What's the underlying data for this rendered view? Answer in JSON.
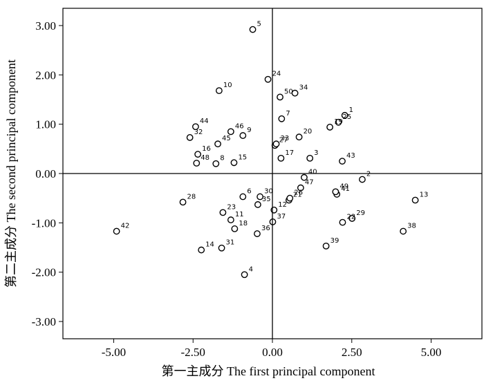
{
  "chart_data": {
    "type": "scatter",
    "title": "",
    "xlabel": "第一主成分 The first principal component",
    "ylabel": "第二主成分 The second principal component",
    "xlim": [
      -6.6,
      6.6
    ],
    "ylim": [
      -3.35,
      3.35
    ],
    "x_ticks": [
      -5,
      -2.5,
      0,
      2.5,
      5
    ],
    "x_tick_labels": [
      "-5.00",
      "-2.50",
      "0.00",
      "2.50",
      "5.00"
    ],
    "y_ticks": [
      3,
      2,
      1,
      0,
      -1,
      -2,
      -3
    ],
    "y_tick_labels": [
      "3.00",
      "2.00",
      "1.00",
      "0.00",
      "-1.00",
      "-2.00",
      "-3.00"
    ],
    "reference_lines": {
      "x": 0,
      "y": 0
    },
    "grid": false,
    "points": [
      {
        "label": "1",
        "x": 2.28,
        "y": 1.18
      },
      {
        "label": "2",
        "x": 2.83,
        "y": -0.12
      },
      {
        "label": "3",
        "x": 1.18,
        "y": 0.31
      },
      {
        "label": "4",
        "x": -0.88,
        "y": -2.05
      },
      {
        "label": "5",
        "x": -0.62,
        "y": 2.92
      },
      {
        "label": "6",
        "x": -0.93,
        "y": -0.47
      },
      {
        "label": "7",
        "x": 0.29,
        "y": 1.11
      },
      {
        "label": "8",
        "x": -1.78,
        "y": 0.2
      },
      {
        "label": "9",
        "x": -0.93,
        "y": 0.77
      },
      {
        "label": "10",
        "x": -1.68,
        "y": 1.68
      },
      {
        "label": "11",
        "x": -1.31,
        "y": -0.94
      },
      {
        "label": "12",
        "x": 0.05,
        "y": -0.74
      },
      {
        "label": "13",
        "x": 4.5,
        "y": -0.54
      },
      {
        "label": "14",
        "x": -2.24,
        "y": -1.55
      },
      {
        "label": "15",
        "x": -1.21,
        "y": 0.22
      },
      {
        "label": "16",
        "x": -2.35,
        "y": 0.39
      },
      {
        "label": "17",
        "x": 0.27,
        "y": 0.31
      },
      {
        "label": "18",
        "x": -1.19,
        "y": -1.12
      },
      {
        "label": "19",
        "x": 1.81,
        "y": 0.94
      },
      {
        "label": "20",
        "x": 0.84,
        "y": 0.74
      },
      {
        "label": "21",
        "x": 0.52,
        "y": -0.54
      },
      {
        "label": "22",
        "x": 2.21,
        "y": -0.99
      },
      {
        "label": "23",
        "x": -1.56,
        "y": -0.79
      },
      {
        "label": "24",
        "x": -0.14,
        "y": 1.91
      },
      {
        "label": "25",
        "x": 2.08,
        "y": 1.04
      },
      {
        "label": "26",
        "x": 0.55,
        "y": -0.5
      },
      {
        "label": "27",
        "x": 0.08,
        "y": 0.57
      },
      {
        "label": "28",
        "x": -2.82,
        "y": -0.58
      },
      {
        "label": "29",
        "x": 2.51,
        "y": -0.91
      },
      {
        "label": "30",
        "x": -0.39,
        "y": -0.47
      },
      {
        "label": "31",
        "x": -1.6,
        "y": -1.51
      },
      {
        "label": "32",
        "x": -2.6,
        "y": 0.73
      },
      {
        "label": "33",
        "x": 0.12,
        "y": 0.6
      },
      {
        "label": "34",
        "x": 0.71,
        "y": 1.63
      },
      {
        "label": "35",
        "x": -0.46,
        "y": -0.63
      },
      {
        "label": "36",
        "x": -0.48,
        "y": -1.22
      },
      {
        "label": "37",
        "x": 0.01,
        "y": -0.98
      },
      {
        "label": "38",
        "x": 4.12,
        "y": -1.17
      },
      {
        "label": "39",
        "x": 1.69,
        "y": -1.47
      },
      {
        "label": "40",
        "x": 1.0,
        "y": -0.08
      },
      {
        "label": "41",
        "x": 2.03,
        "y": -0.42
      },
      {
        "label": "42",
        "x": -4.91,
        "y": -1.17
      },
      {
        "label": "43",
        "x": 2.2,
        "y": 0.25
      },
      {
        "label": "44",
        "x": -2.42,
        "y": 0.95
      },
      {
        "label": "45",
        "x": -1.72,
        "y": 0.6
      },
      {
        "label": "46",
        "x": -1.31,
        "y": 0.85
      },
      {
        "label": "47",
        "x": 0.89,
        "y": -0.29
      },
      {
        "label": "48",
        "x": -2.39,
        "y": 0.21
      },
      {
        "label": "49",
        "x": 1.99,
        "y": -0.37
      },
      {
        "label": "50",
        "x": 0.24,
        "y": 1.55
      }
    ]
  }
}
